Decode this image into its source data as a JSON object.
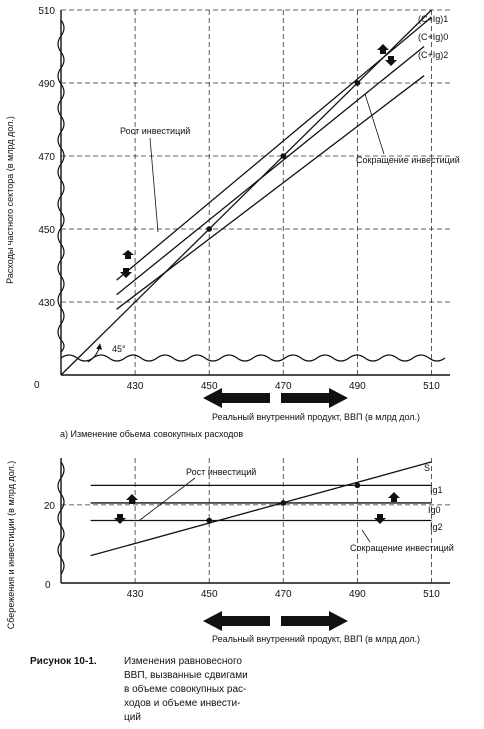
{
  "chart_data": [
    {
      "type": "line",
      "panel_label": "а) Изменение обьема совокупных расходов",
      "xlabel": "Реальный внутренний продукт, ВВП (в млрд дол.)",
      "ylabel": "Расходы частного сектора (в млрд дол.)",
      "origin_label": "0",
      "xlim": [
        410,
        515
      ],
      "ylim": [
        410,
        510
      ],
      "x_ticks": [
        430,
        450,
        470,
        490,
        510
      ],
      "y_ticks": [
        430,
        450,
        470,
        490,
        510
      ],
      "grid": "dashed",
      "series": [
        {
          "name": "(C+Ig)1",
          "x": [
            425,
            510
          ],
          "y": [
            436,
            508
          ]
        },
        {
          "name": "(C+Ig)0",
          "x": [
            425,
            508
          ],
          "y": [
            432,
            500
          ]
        },
        {
          "name": "(C+Ig)2",
          "x": [
            425,
            508
          ],
          "y": [
            428,
            492
          ]
        }
      ],
      "reference_line": {
        "label": "45°",
        "x": [
          410,
          510
        ],
        "y": [
          410,
          510
        ]
      },
      "equilibrium_points": [
        {
          "x": 450,
          "y": 450
        },
        {
          "x": 470,
          "y": 470
        },
        {
          "x": 490,
          "y": 490
        }
      ],
      "annotations": [
        {
          "text": "Рост инвестиций"
        },
        {
          "text": "Сокращение инвестиций"
        }
      ]
    },
    {
      "type": "line",
      "xlabel": "Реальный внутренний продукт, ВВП (в млрд дол.)",
      "ylabel": "Сбережения и инвестиции (в млрд дол.)",
      "origin_label": "0",
      "xlim": [
        410,
        515
      ],
      "ylim": [
        0,
        32
      ],
      "x_ticks": [
        430,
        450,
        470,
        490,
        510
      ],
      "y_ticks": [
        20
      ],
      "grid": "dashed",
      "series": [
        {
          "name": "S",
          "x": [
            418,
            510
          ],
          "y": [
            7,
            31
          ]
        },
        {
          "name": "Ig1",
          "x": [
            418,
            510
          ],
          "y": [
            25,
            25
          ]
        },
        {
          "name": "Ig0",
          "x": [
            418,
            510
          ],
          "y": [
            20.5,
            20.5
          ]
        },
        {
          "name": "Ig2",
          "x": [
            418,
            510
          ],
          "y": [
            16,
            16
          ]
        }
      ],
      "equilibrium_points": [
        {
          "x": 450,
          "y": 16
        },
        {
          "x": 470,
          "y": 20.5
        },
        {
          "x": 490,
          "y": 25
        }
      ],
      "annotations": [
        {
          "text": "Рост инвестиций"
        },
        {
          "text": "Сокращение инвестиций"
        }
      ]
    }
  ],
  "caption": {
    "label": "Рисунок 10-1.",
    "lines": [
      "Изменения равновесного",
      "ВВП, вызванные сдвигами",
      "в объеме совокупных рас-",
      "ходов и объеме инвести-",
      "ций"
    ]
  }
}
